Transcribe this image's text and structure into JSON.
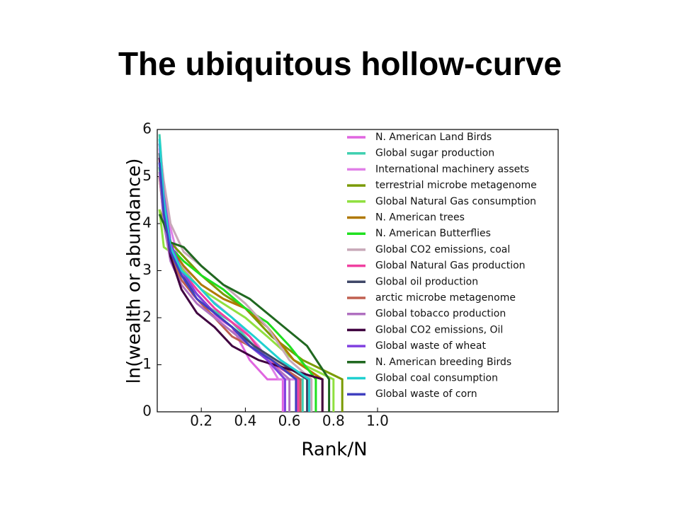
{
  "title": "The ubiquitous hollow-curve",
  "chart_data": {
    "type": "line",
    "x_label": "Rank/N",
    "y_label": "ln(wealth or abundance)",
    "xlim": [
      0,
      1.82
    ],
    "ylim": [
      0,
      6
    ],
    "xticks": [
      0.2,
      0.4,
      0.6,
      0.8,
      {
        "value": 1.0,
        "label": "1.0"
      }
    ],
    "yticks": [
      0,
      1,
      2,
      3,
      4,
      5,
      6
    ],
    "series": [
      {
        "name": "N. American Land Birds",
        "color": "#e066e0",
        "x": [
          0.01,
          0.03,
          0.06,
          0.1,
          0.16,
          0.24,
          0.34,
          0.42,
          0.5,
          0.57,
          0.57
        ],
        "values": [
          5.6,
          4.6,
          3.5,
          3.0,
          2.5,
          2.1,
          1.8,
          1.1,
          0.69,
          0.69,
          0
        ]
      },
      {
        "name": "Global sugar production",
        "color": "#40d0b0",
        "x": [
          0.01,
          0.03,
          0.06,
          0.1,
          0.16,
          0.24,
          0.34,
          0.44,
          0.58,
          0.66,
          0.66
        ],
        "values": [
          5.9,
          4.7,
          3.6,
          3.1,
          2.6,
          2.2,
          1.9,
          1.4,
          0.69,
          0.69,
          0
        ]
      },
      {
        "name": "International machinery assets",
        "color": "#e080e8",
        "x": [
          0.01,
          0.03,
          0.06,
          0.1,
          0.16,
          0.24,
          0.34,
          0.46,
          0.55,
          0.63,
          0.63
        ],
        "values": [
          5.3,
          4.8,
          3.9,
          3.2,
          2.8,
          2.4,
          2.0,
          1.4,
          0.69,
          0.69,
          0
        ]
      },
      {
        "name": "terrestrial microbe metagenome",
        "color": "#7a9a00",
        "x": [
          0.01,
          0.03,
          0.06,
          0.12,
          0.2,
          0.3,
          0.4,
          0.52,
          0.66,
          0.84,
          0.84
        ],
        "values": [
          4.3,
          4.0,
          3.6,
          3.3,
          2.9,
          2.5,
          2.2,
          1.6,
          1.1,
          0.69,
          0
        ]
      },
      {
        "name": "Global Natural Gas consumption",
        "color": "#90e040",
        "x": [
          0.01,
          0.03,
          0.06,
          0.12,
          0.2,
          0.3,
          0.4,
          0.5,
          0.62,
          0.8,
          0.8
        ],
        "values": [
          4.3,
          3.5,
          3.4,
          3.0,
          2.6,
          2.3,
          2.0,
          1.6,
          1.1,
          0.69,
          0
        ]
      },
      {
        "name": "N. American trees",
        "color": "#b07800",
        "x": [
          0.01,
          0.03,
          0.06,
          0.12,
          0.2,
          0.3,
          0.4,
          0.5,
          0.62,
          0.75,
          0.75
        ],
        "values": [
          5.0,
          4.2,
          3.5,
          3.1,
          2.7,
          2.4,
          2.2,
          1.8,
          1.1,
          0.69,
          0
        ]
      },
      {
        "name": "N. American Butterflies",
        "color": "#20e020",
        "x": [
          0.01,
          0.03,
          0.06,
          0.12,
          0.2,
          0.3,
          0.4,
          0.5,
          0.6,
          0.72,
          0.72
        ],
        "values": [
          5.2,
          4.3,
          3.5,
          3.2,
          2.9,
          2.6,
          2.2,
          1.9,
          1.4,
          0.69,
          0
        ]
      },
      {
        "name": "Global CO2 emissions, coal",
        "color": "#c8a8b8",
        "x": [
          0.01,
          0.03,
          0.06,
          0.12,
          0.2,
          0.3,
          0.4,
          0.5,
          0.6,
          0.7,
          0.7
        ],
        "values": [
          5.7,
          4.9,
          4.0,
          3.4,
          3.1,
          2.7,
          2.3,
          1.8,
          1.1,
          0.69,
          0
        ]
      },
      {
        "name": "Global Natural Gas production",
        "color": "#f040a0",
        "x": [
          0.01,
          0.03,
          0.06,
          0.11,
          0.18,
          0.26,
          0.34,
          0.42,
          0.5,
          0.64,
          0.64
        ],
        "values": [
          5.4,
          4.4,
          3.5,
          3.0,
          2.6,
          2.2,
          1.9,
          1.6,
          1.1,
          0.69,
          0
        ]
      },
      {
        "name": "Global oil production",
        "color": "#404868",
        "x": [
          0.01,
          0.03,
          0.06,
          0.11,
          0.18,
          0.26,
          0.34,
          0.44,
          0.54,
          0.68,
          0.68
        ],
        "values": [
          5.5,
          4.3,
          3.4,
          2.9,
          2.5,
          2.1,
          1.8,
          1.4,
          1.1,
          0.69,
          0
        ]
      },
      {
        "name": "arctic microbe metagenome",
        "color": "#c06050",
        "x": [
          0.01,
          0.03,
          0.06,
          0.11,
          0.18,
          0.26,
          0.34,
          0.42,
          0.52,
          0.65,
          0.65
        ],
        "values": [
          5.0,
          4.1,
          3.3,
          2.8,
          2.4,
          2.0,
          1.6,
          1.4,
          1.1,
          0.69,
          0
        ]
      },
      {
        "name": "Global tobacco production",
        "color": "#b070c0",
        "x": [
          0.01,
          0.03,
          0.06,
          0.11,
          0.18,
          0.26,
          0.34,
          0.42,
          0.5,
          0.6,
          0.6
        ],
        "values": [
          5.1,
          4.0,
          3.2,
          2.7,
          2.3,
          2.0,
          1.7,
          1.4,
          1.1,
          0.69,
          0
        ]
      },
      {
        "name": "Global CO2 emissions, Oil",
        "color": "#400040",
        "x": [
          0.01,
          0.03,
          0.06,
          0.11,
          0.18,
          0.26,
          0.34,
          0.46,
          0.6,
          0.75,
          0.75
        ],
        "values": [
          5.4,
          4.4,
          3.3,
          2.6,
          2.1,
          1.8,
          1.4,
          1.1,
          0.9,
          0.69,
          0
        ]
      },
      {
        "name": "Global waste of wheat",
        "color": "#8040e0",
        "x": [
          0.01,
          0.03,
          0.06,
          0.11,
          0.18,
          0.26,
          0.34,
          0.42,
          0.5,
          0.58,
          0.58
        ],
        "values": [
          5.7,
          4.6,
          3.6,
          3.0,
          2.5,
          2.1,
          1.8,
          1.4,
          1.1,
          0.69,
          0
        ]
      },
      {
        "name": "N. American breeding Birds",
        "color": "#206820",
        "x": [
          0.01,
          0.03,
          0.06,
          0.12,
          0.2,
          0.3,
          0.42,
          0.55,
          0.68,
          0.78,
          0.78
        ],
        "values": [
          4.2,
          4.0,
          3.6,
          3.5,
          3.1,
          2.7,
          2.4,
          1.9,
          1.4,
          0.69,
          0
        ]
      },
      {
        "name": "Global coal consumption",
        "color": "#20d0d0",
        "x": [
          0.01,
          0.03,
          0.06,
          0.11,
          0.18,
          0.26,
          0.34,
          0.44,
          0.56,
          0.69,
          0.69
        ],
        "values": [
          5.8,
          4.5,
          3.5,
          3.0,
          2.7,
          2.3,
          2.0,
          1.6,
          1.1,
          0.69,
          0
        ]
      },
      {
        "name": "Global waste of corn",
        "color": "#4040c0",
        "x": [
          0.01,
          0.03,
          0.06,
          0.11,
          0.18,
          0.26,
          0.34,
          0.42,
          0.52,
          0.63,
          0.63
        ],
        "values": [
          5.3,
          4.2,
          3.4,
          2.9,
          2.4,
          2.1,
          1.8,
          1.4,
          1.1,
          0.69,
          0
        ]
      }
    ]
  }
}
